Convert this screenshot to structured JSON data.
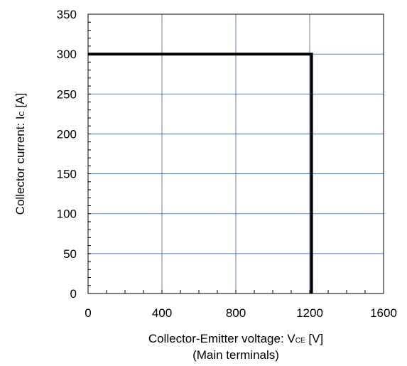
{
  "chart_data": {
    "type": "line",
    "xlabel": {
      "line1_main": "Collector-Emitter voltage: V",
      "line1_sub": "CE",
      "line1_unit": " [V]",
      "line2": "(Main terminals)"
    },
    "ylabel": {
      "main": "Collector current: I",
      "sub": "C",
      "unit": " [A]"
    },
    "xlim": [
      0,
      1600
    ],
    "ylim": [
      0,
      350
    ],
    "x_major_ticks": [
      0,
      400,
      800,
      1200,
      1600
    ],
    "x_tick_labels": [
      "0",
      "400",
      "800",
      "1200",
      "1600"
    ],
    "x_minor_step": 100,
    "y_major_ticks": [
      0,
      50,
      100,
      150,
      200,
      250,
      300,
      350
    ],
    "y_tick_labels": [
      "0",
      "50",
      "100",
      "150",
      "200",
      "250",
      "300",
      "350"
    ],
    "y_minor_step": 10,
    "grid": true,
    "colors": {
      "grid": "#3b5f9e",
      "series": "#000000",
      "axis": "#000000"
    },
    "series": [
      {
        "x": [
          0,
          1210,
          1210
        ],
        "y": [
          300,
          300,
          0
        ]
      }
    ]
  }
}
